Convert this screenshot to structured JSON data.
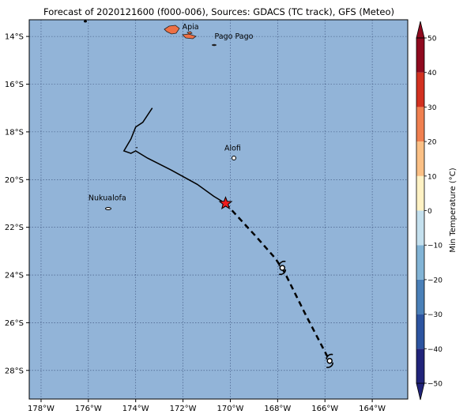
{
  "title": "Forecast of 2020121600 (f000-006), Sources: GDACS (TC track), GFS (Meteo)",
  "map": {
    "ocean_color": "#92b4d8",
    "lon_range": [
      -178.5,
      -162.5
    ],
    "lat_range": [
      -29.2,
      -13.3
    ],
    "lon_ticks": [
      {
        "v": -178,
        "label": "178°W"
      },
      {
        "v": -176,
        "label": "176°W"
      },
      {
        "v": -174,
        "label": "174°W"
      },
      {
        "v": -172,
        "label": "172°W"
      },
      {
        "v": -170,
        "label": "170°W"
      },
      {
        "v": -168,
        "label": "168°W"
      },
      {
        "v": -166,
        "label": "166°W"
      },
      {
        "v": -164,
        "label": "164°W"
      }
    ],
    "lat_ticks": [
      {
        "v": -14,
        "label": "14°S"
      },
      {
        "v": -16,
        "label": "16°S"
      },
      {
        "v": -18,
        "label": "18°S"
      },
      {
        "v": -20,
        "label": "20°S"
      },
      {
        "v": -22,
        "label": "22°S"
      },
      {
        "v": -24,
        "label": "24°S"
      },
      {
        "v": -26,
        "label": "26°S"
      },
      {
        "v": -28,
        "label": "28°S"
      }
    ],
    "grid": "dotted"
  },
  "places": [
    {
      "name": "Apia",
      "lon": -171.8,
      "lat": -13.8
    },
    {
      "name": "Pago Pago",
      "lon": -170.7,
      "lat": -14.3
    },
    {
      "name": "Alofi",
      "lon": -169.9,
      "lat": -19.05
    },
    {
      "name": "Nukualofa",
      "lon": -175.2,
      "lat": -21.13
    }
  ],
  "chart_data": {
    "type": "map-track",
    "past_track": [
      [
        -173.3,
        -17.0
      ],
      [
        -173.7,
        -17.6
      ],
      [
        -174.0,
        -17.8
      ],
      [
        -174.2,
        -18.3
      ],
      [
        -174.5,
        -18.8
      ],
      [
        -174.2,
        -18.9
      ],
      [
        -174.0,
        -18.8
      ],
      [
        -173.5,
        -19.1
      ],
      [
        -172.5,
        -19.6
      ],
      [
        -171.4,
        -20.2
      ],
      [
        -170.7,
        -20.7
      ],
      [
        -170.2,
        -21.0
      ]
    ],
    "current_position": [
      -170.2,
      -21.0
    ],
    "forecast_track": [
      [
        -170.2,
        -21.0
      ],
      [
        -168.9,
        -22.4
      ],
      [
        -168.1,
        -23.3
      ],
      [
        -167.7,
        -23.9
      ],
      [
        -166.8,
        -25.7
      ],
      [
        -165.8,
        -27.6
      ]
    ],
    "forecast_symbols": [
      [
        -167.8,
        -23.7
      ],
      [
        -165.8,
        -27.6
      ]
    ]
  },
  "colorbar": {
    "label": "Min Temperature (°C)",
    "range": [
      -50,
      50
    ],
    "ticks": [
      {
        "v": 50,
        "label": "50"
      },
      {
        "v": 40,
        "label": "40"
      },
      {
        "v": 30,
        "label": "30"
      },
      {
        "v": 20,
        "label": "20"
      },
      {
        "v": 10,
        "label": "10"
      },
      {
        "v": 0,
        "label": "0"
      },
      {
        "v": -10,
        "label": "−10"
      },
      {
        "v": -20,
        "label": "−20"
      },
      {
        "v": -30,
        "label": "−30"
      },
      {
        "v": -40,
        "label": "−40"
      },
      {
        "v": -50,
        "label": "−50"
      }
    ],
    "colors": [
      "#21247a",
      "#2c54a0",
      "#4a80b8",
      "#82b4d6",
      "#c4e0ee",
      "#fafdff",
      "#fff2c4",
      "#fbc085",
      "#f08050",
      "#d23120",
      "#8f0a1f"
    ]
  }
}
